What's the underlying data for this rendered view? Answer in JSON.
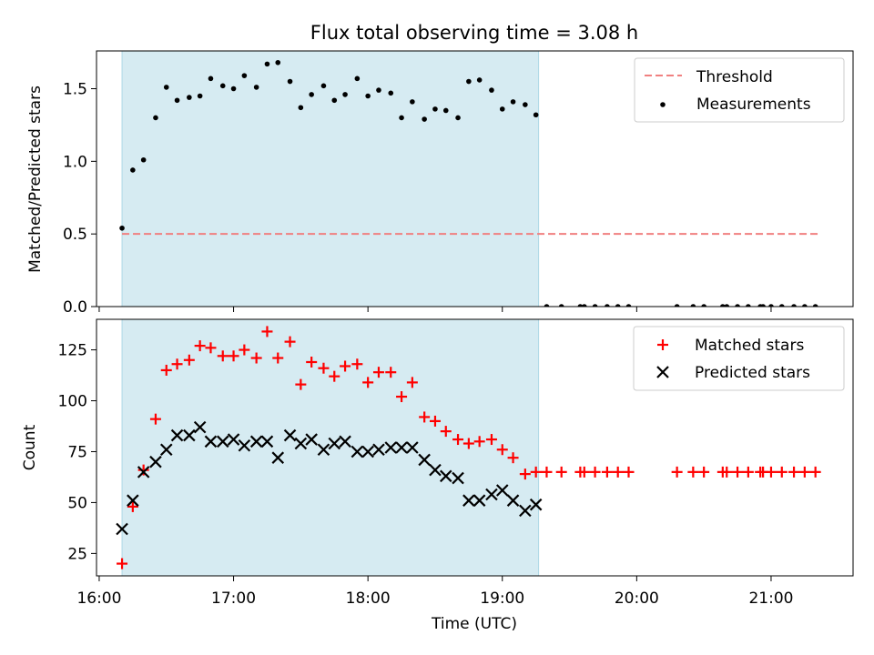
{
  "title": "Flux total observing time = 3.08 h",
  "x_axis": {
    "label": "Time (UTC)",
    "ticks": [
      "16:00",
      "17:00",
      "18:00",
      "19:00",
      "20:00",
      "21:00"
    ],
    "tick_values": [
      16.0,
      17.0,
      18.0,
      19.0,
      20.0,
      21.0
    ],
    "range": [
      15.98,
      21.61
    ]
  },
  "shaded_interval": {
    "start": 16.17,
    "end": 19.27,
    "color": "#add8e6"
  },
  "colors": {
    "threshold": "#f08080",
    "measurements": "#000000",
    "matched": "#ff0000",
    "predicted": "#000000"
  },
  "chart_data": [
    {
      "type": "scatter",
      "ylabel": "Matched/Predicted stars",
      "ylim": [
        0,
        1.76
      ],
      "yticks": [
        "0.0",
        "0.5",
        "1.0",
        "1.5"
      ],
      "ytick_values": [
        0,
        0.5,
        1.0,
        1.5
      ],
      "legend": "top-right",
      "threshold": {
        "name": "Threshold",
        "y": 0.5,
        "x_range": [
          16.17,
          21.36
        ]
      },
      "series": [
        {
          "name": "Measurements",
          "x": [
            16.17,
            16.25,
            16.33,
            16.42,
            16.5,
            16.58,
            16.67,
            16.75,
            16.83,
            16.92,
            17.0,
            17.08,
            17.17,
            17.25,
            17.33,
            17.42,
            17.5,
            17.58,
            17.67,
            17.75,
            17.83,
            17.92,
            18.0,
            18.08,
            18.17,
            18.25,
            18.33,
            18.42,
            18.5,
            18.58,
            18.67,
            18.75,
            18.83,
            18.92,
            19.0,
            19.08,
            19.17,
            19.25,
            19.33,
            19.44,
            19.58,
            19.61,
            19.69,
            19.78,
            19.86,
            19.94,
            20.3,
            20.42,
            20.5,
            20.64,
            20.67,
            20.75,
            20.83,
            20.92,
            20.94,
            21.0,
            21.08,
            21.17,
            21.25,
            21.33
          ],
          "y": [
            0.54,
            0.94,
            1.01,
            1.3,
            1.51,
            1.42,
            1.44,
            1.45,
            1.57,
            1.52,
            1.5,
            1.59,
            1.51,
            1.67,
            1.68,
            1.55,
            1.37,
            1.46,
            1.52,
            1.42,
            1.46,
            1.57,
            1.45,
            1.49,
            1.47,
            1.3,
            1.41,
            1.29,
            1.36,
            1.35,
            1.3,
            1.55,
            1.56,
            1.49,
            1.36,
            1.41,
            1.39,
            1.32,
            0,
            0,
            0,
            0,
            0,
            0,
            0,
            0,
            0,
            0,
            0,
            0,
            0,
            0,
            0,
            0,
            0,
            0,
            0,
            0,
            0,
            0
          ]
        }
      ]
    },
    {
      "type": "scatter",
      "ylabel": "Count",
      "ylim": [
        14,
        140
      ],
      "yticks": [
        "25",
        "50",
        "75",
        "100",
        "125"
      ],
      "ytick_values": [
        25,
        50,
        75,
        100,
        125
      ],
      "xlabel": "Time (UTC)",
      "legend": "top-right",
      "series": [
        {
          "name": "Matched stars",
          "marker": "+",
          "x": [
            16.17,
            16.25,
            16.33,
            16.42,
            16.5,
            16.58,
            16.67,
            16.75,
            16.83,
            16.92,
            17.0,
            17.08,
            17.17,
            17.25,
            17.33,
            17.42,
            17.5,
            17.58,
            17.67,
            17.75,
            17.83,
            17.92,
            18.0,
            18.08,
            18.17,
            18.25,
            18.33,
            18.42,
            18.5,
            18.58,
            18.67,
            18.75,
            18.83,
            18.92,
            19.0,
            19.08,
            19.17,
            19.25,
            19.33,
            19.44,
            19.58,
            19.61,
            19.69,
            19.78,
            19.86,
            19.94,
            20.3,
            20.42,
            20.5,
            20.64,
            20.67,
            20.75,
            20.83,
            20.92,
            20.94,
            21.0,
            21.08,
            21.17,
            21.25,
            21.33
          ],
          "y": [
            20,
            48,
            66,
            91,
            115,
            118,
            120,
            127,
            126,
            122,
            122,
            125,
            121,
            134,
            121,
            129,
            108,
            119,
            116,
            112,
            117,
            118,
            109,
            114,
            114,
            102,
            109,
            92,
            90,
            85,
            81,
            79,
            80,
            81,
            76,
            72,
            64,
            65,
            65,
            65,
            65,
            65,
            65,
            65,
            65,
            65,
            65,
            65,
            65,
            65,
            65,
            65,
            65,
            65,
            65,
            65,
            65,
            65,
            65,
            65
          ]
        },
        {
          "name": "Predicted stars",
          "marker": "x",
          "x": [
            16.17,
            16.25,
            16.33,
            16.42,
            16.5,
            16.58,
            16.67,
            16.75,
            16.83,
            16.92,
            17.0,
            17.08,
            17.17,
            17.25,
            17.33,
            17.42,
            17.5,
            17.58,
            17.67,
            17.75,
            17.83,
            17.92,
            18.0,
            18.08,
            18.17,
            18.25,
            18.33,
            18.42,
            18.5,
            18.58,
            18.67,
            18.75,
            18.83,
            18.92,
            19.0,
            19.08,
            19.17,
            19.25
          ],
          "y": [
            37,
            51,
            65,
            70,
            76,
            83,
            83,
            87,
            80,
            80,
            81,
            78,
            80,
            80,
            72,
            83,
            79,
            81,
            76,
            79,
            80,
            75,
            75,
            76,
            77,
            77,
            77,
            71,
            66,
            63,
            62,
            51,
            51,
            54,
            56,
            51,
            46,
            49
          ]
        }
      ]
    }
  ]
}
